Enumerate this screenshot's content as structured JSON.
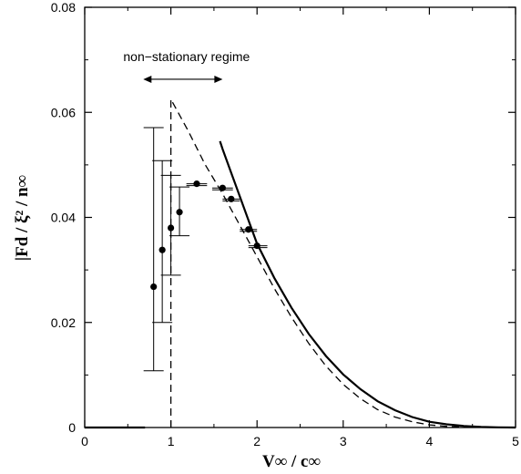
{
  "chart_data": {
    "type": "scatter",
    "title": "",
    "xlabel": "V∞ / c∞",
    "ylabel": "|Fd / ξ² / n∞",
    "xlim": [
      0,
      5
    ],
    "ylim": [
      0,
      0.08
    ],
    "x_ticks": [
      "0",
      "1",
      "2",
      "3",
      "4",
      "5"
    ],
    "y_ticks": [
      "0",
      "0.02",
      "0.04",
      "0.06",
      "0.08"
    ],
    "grid": false,
    "legend": "none",
    "annotation": {
      "text": "non−stationary regime",
      "x_range": [
        0.68,
        1.6
      ],
      "y": 0.0663
    },
    "series": [
      {
        "style": "markers-with-errorbars",
        "points": [
          {
            "x": 0.8,
            "y": 0.0268,
            "ylow": 0.0108,
            "yhigh": 0.0571
          },
          {
            "x": 0.9,
            "y": 0.0338,
            "ylow": 0.02,
            "yhigh": 0.0508
          },
          {
            "x": 1.0,
            "y": 0.038,
            "ylow": 0.029,
            "yhigh": 0.048
          },
          {
            "x": 1.1,
            "y": 0.041,
            "ylow": 0.0365,
            "yhigh": 0.0458
          },
          {
            "x": 1.3,
            "y": 0.0464,
            "xlow": 1.18,
            "xhigh": 1.42
          },
          {
            "x": 1.6,
            "y": 0.0456,
            "xlow": 1.48,
            "xhigh": 1.72
          },
          {
            "x": 1.7,
            "y": 0.0435,
            "xlow": 1.6,
            "xhigh": 1.8
          },
          {
            "x": 1.9,
            "y": 0.0377,
            "xlow": 1.8,
            "xhigh": 2.0
          },
          {
            "x": 2.0,
            "y": 0.0346,
            "xlow": 1.9,
            "xhigh": 2.12
          }
        ]
      },
      {
        "style": "solid",
        "x": [
          0,
          0.7,
          1.0,
          1.57,
          1.6,
          1.7,
          1.8,
          1.9,
          2.0,
          2.2,
          2.4,
          2.6,
          2.8,
          3.0,
          3.2,
          3.4,
          3.6,
          3.8,
          4.0,
          4.2,
          4.4,
          4.6,
          4.8,
          5.0
        ],
        "y": [
          0,
          0,
          null,
          0.0545,
          0.053,
          0.0485,
          0.044,
          0.0395,
          0.035,
          0.0285,
          0.0228,
          0.0178,
          0.0136,
          0.0101,
          0.0073,
          0.005,
          0.0033,
          0.002,
          0.0011,
          0.0006,
          0.0003,
          0.0001,
          4e-05,
          0
        ]
      },
      {
        "style": "dashed",
        "x": [
          1.0,
          1.0,
          1.2,
          1.4,
          1.6,
          1.8,
          2.0,
          2.2,
          2.4,
          2.6,
          2.8,
          3.0,
          3.2,
          3.4,
          3.6,
          3.8,
          4.0,
          4.2,
          4.4,
          4.6,
          4.8,
          5.0
        ],
        "y": [
          0,
          0.0625,
          0.0565,
          0.05,
          0.0445,
          0.0385,
          0.0325,
          0.0265,
          0.021,
          0.016,
          0.0117,
          0.0082,
          0.0055,
          0.0034,
          0.002,
          0.0011,
          0.0005,
          0.0002,
          0.0001,
          4e-05,
          1e-05,
          0
        ]
      }
    ]
  }
}
